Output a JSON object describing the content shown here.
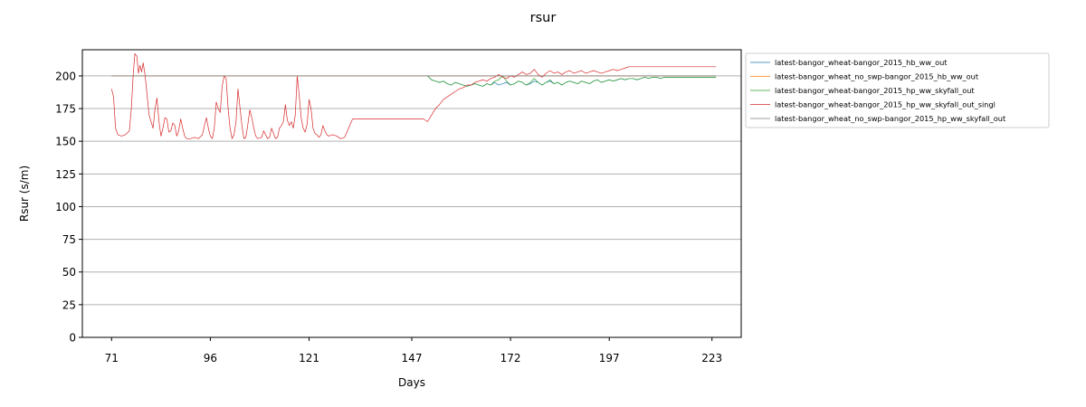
{
  "chart_data": {
    "type": "line",
    "title": "rsur",
    "xlabel": "Days",
    "ylabel": "Rsur (s/m)",
    "xlim": [
      63.6,
      230.4
    ],
    "ylim": [
      0,
      220
    ],
    "x_ticks": [
      71,
      96,
      121,
      147,
      172,
      197,
      223
    ],
    "y_ticks": [
      0,
      25,
      50,
      75,
      100,
      125,
      150,
      175,
      200
    ],
    "grid": "horizontal",
    "legend_position": "outside-right-top",
    "series": [
      {
        "name": "latest-bangor_wheat-bangor_2015_hb_ww_out",
        "color": "#1f77b4",
        "points": [
          [
            151,
            200
          ],
          [
            152,
            197
          ],
          [
            153,
            196
          ],
          [
            154,
            195
          ],
          [
            155,
            196
          ],
          [
            156,
            194
          ],
          [
            157,
            193
          ],
          [
            158,
            195
          ],
          [
            159,
            194
          ],
          [
            160,
            193
          ],
          [
            161,
            192
          ],
          [
            162,
            193
          ],
          [
            163,
            194
          ],
          [
            164,
            193
          ],
          [
            165,
            192
          ],
          [
            166,
            194
          ],
          [
            167,
            193
          ],
          [
            168,
            195
          ],
          [
            169,
            193
          ],
          [
            170,
            194
          ],
          [
            171,
            195
          ],
          [
            172,
            193
          ],
          [
            173,
            194
          ],
          [
            174,
            196
          ],
          [
            175,
            195
          ],
          [
            176,
            193
          ],
          [
            177,
            194
          ],
          [
            178,
            196
          ],
          [
            179,
            195
          ],
          [
            180,
            193
          ],
          [
            181,
            195
          ],
          [
            182,
            196
          ],
          [
            183,
            194
          ],
          [
            184,
            195
          ],
          [
            185,
            193
          ],
          [
            186,
            195
          ],
          [
            187,
            196
          ],
          [
            188,
            195
          ],
          [
            189,
            194
          ],
          [
            190,
            196
          ],
          [
            191,
            195
          ],
          [
            192,
            194
          ],
          [
            193,
            196
          ],
          [
            194,
            197
          ],
          [
            195,
            195
          ],
          [
            196,
            196
          ],
          [
            197,
            197
          ],
          [
            198,
            196
          ],
          [
            199,
            197
          ],
          [
            200,
            198
          ],
          [
            201,
            197
          ],
          [
            202,
            198
          ],
          [
            203,
            198
          ],
          [
            204,
            197
          ],
          [
            205,
            198
          ],
          [
            206,
            199
          ],
          [
            207,
            198
          ],
          [
            208,
            199
          ],
          [
            209,
            199
          ],
          [
            210,
            198
          ],
          [
            211,
            199
          ],
          [
            212,
            199
          ],
          [
            214,
            199
          ],
          [
            216,
            199
          ],
          [
            218,
            199
          ],
          [
            220,
            199
          ],
          [
            222,
            199
          ],
          [
            224,
            199
          ]
        ]
      },
      {
        "name": "latest-bangor_wheat_no_swp-bangor_2015_hb_ww_out",
        "color": "#ff7f0e",
        "points": [
          [
            71,
            200
          ],
          [
            151,
            200
          ],
          [
            180,
            200
          ],
          [
            224,
            200
          ]
        ]
      },
      {
        "name": "latest-bangor_wheat-bangor_2015_hp_ww_skyfall_out",
        "color": "#2ca02c",
        "points": [
          [
            151,
            200
          ],
          [
            152,
            197
          ],
          [
            153,
            196
          ],
          [
            154,
            195
          ],
          [
            155,
            196
          ],
          [
            156,
            194
          ],
          [
            157,
            193
          ],
          [
            158,
            195
          ],
          [
            159,
            194
          ],
          [
            160,
            193
          ],
          [
            161,
            192
          ],
          [
            162,
            193
          ],
          [
            163,
            194
          ],
          [
            164,
            193
          ],
          [
            165,
            192
          ],
          [
            166,
            194
          ],
          [
            167,
            193
          ],
          [
            168,
            196
          ],
          [
            169,
            197
          ],
          [
            170,
            200
          ],
          [
            171,
            196
          ],
          [
            172,
            193
          ],
          [
            173,
            194
          ],
          [
            174,
            196
          ],
          [
            175,
            195
          ],
          [
            176,
            193
          ],
          [
            177,
            195
          ],
          [
            178,
            198
          ],
          [
            179,
            195
          ],
          [
            180,
            193
          ],
          [
            181,
            195
          ],
          [
            182,
            197
          ],
          [
            183,
            194
          ],
          [
            184,
            195
          ],
          [
            185,
            193
          ],
          [
            186,
            195
          ],
          [
            187,
            196
          ],
          [
            188,
            195
          ],
          [
            189,
            194
          ],
          [
            190,
            196
          ],
          [
            191,
            195
          ],
          [
            192,
            194
          ],
          [
            193,
            196
          ],
          [
            194,
            197
          ],
          [
            195,
            195
          ],
          [
            196,
            196
          ],
          [
            197,
            197
          ],
          [
            198,
            196
          ],
          [
            199,
            197
          ],
          [
            200,
            198
          ],
          [
            201,
            197
          ],
          [
            202,
            198
          ],
          [
            203,
            198
          ],
          [
            204,
            197
          ],
          [
            205,
            198
          ],
          [
            206,
            199
          ],
          [
            207,
            198
          ],
          [
            208,
            199
          ],
          [
            209,
            199
          ],
          [
            210,
            198
          ],
          [
            211,
            199
          ],
          [
            212,
            199
          ],
          [
            214,
            199
          ],
          [
            216,
            199
          ],
          [
            218,
            199
          ],
          [
            220,
            199
          ],
          [
            222,
            199
          ],
          [
            224,
            199
          ]
        ]
      },
      {
        "name": "latest-bangor_wheat-bangor_2015_hp_ww_skyfall_out_singl",
        "color": "#d62728",
        "points": [
          [
            71,
            190
          ],
          [
            71.5,
            184
          ],
          [
            72,
            160
          ],
          [
            72.6,
            155
          ],
          [
            73.5,
            154
          ],
          [
            74.5,
            155
          ],
          [
            75.5,
            158
          ],
          [
            76,
            175
          ],
          [
            76.5,
            202
          ],
          [
            76.9,
            217
          ],
          [
            77.4,
            215
          ],
          [
            77.8,
            202
          ],
          [
            78.2,
            208
          ],
          [
            78.6,
            203
          ],
          [
            79,
            210
          ],
          [
            79.5,
            200
          ],
          [
            80,
            185
          ],
          [
            80.5,
            170
          ],
          [
            81,
            165
          ],
          [
            81.5,
            160
          ],
          [
            82,
            175
          ],
          [
            82.5,
            183
          ],
          [
            83,
            165
          ],
          [
            83.5,
            154
          ],
          [
            84,
            160
          ],
          [
            84.5,
            168
          ],
          [
            85,
            167
          ],
          [
            85.5,
            157
          ],
          [
            86,
            158
          ],
          [
            86.5,
            164
          ],
          [
            87,
            162
          ],
          [
            87.5,
            154
          ],
          [
            88,
            158
          ],
          [
            88.5,
            167
          ],
          [
            89,
            160
          ],
          [
            89.5,
            154
          ],
          [
            90,
            152
          ],
          [
            91,
            152
          ],
          [
            92,
            153
          ],
          [
            93,
            152
          ],
          [
            94,
            155
          ],
          [
            94.5,
            162
          ],
          [
            95,
            168
          ],
          [
            95.5,
            160
          ],
          [
            96,
            154
          ],
          [
            96.5,
            152
          ],
          [
            97,
            160
          ],
          [
            97.5,
            180
          ],
          [
            98,
            175
          ],
          [
            98.5,
            172
          ],
          [
            99,
            192
          ],
          [
            99.5,
            200
          ],
          [
            100,
            198
          ],
          [
            100.5,
            175
          ],
          [
            101,
            160
          ],
          [
            101.5,
            152
          ],
          [
            102,
            155
          ],
          [
            102.5,
            165
          ],
          [
            103,
            190
          ],
          [
            103.5,
            176
          ],
          [
            104,
            162
          ],
          [
            104.5,
            152
          ],
          [
            105,
            153
          ],
          [
            105.5,
            163
          ],
          [
            106,
            174
          ],
          [
            106.5,
            168
          ],
          [
            107,
            160
          ],
          [
            107.5,
            154
          ],
          [
            108,
            152
          ],
          [
            109,
            153
          ],
          [
            109.5,
            158
          ],
          [
            110,
            155
          ],
          [
            110.5,
            152
          ],
          [
            111,
            153
          ],
          [
            111.5,
            160
          ],
          [
            112,
            156
          ],
          [
            112.5,
            152
          ],
          [
            113,
            153
          ],
          [
            113.5,
            160
          ],
          [
            114,
            162
          ],
          [
            114.5,
            165
          ],
          [
            115,
            178
          ],
          [
            115.5,
            166
          ],
          [
            116,
            162
          ],
          [
            116.5,
            165
          ],
          [
            117,
            160
          ],
          [
            117.5,
            170
          ],
          [
            118,
            200
          ],
          [
            118.5,
            185
          ],
          [
            119,
            168
          ],
          [
            119.5,
            160
          ],
          [
            120,
            157
          ],
          [
            120.5,
            163
          ],
          [
            121,
            182
          ],
          [
            121.5,
            175
          ],
          [
            122,
            160
          ],
          [
            122.5,
            156
          ],
          [
            123,
            155
          ],
          [
            123.5,
            153
          ],
          [
            124,
            155
          ],
          [
            124.5,
            162
          ],
          [
            125,
            158
          ],
          [
            125.5,
            155
          ],
          [
            126,
            154
          ],
          [
            127,
            155
          ],
          [
            128,
            154
          ],
          [
            129,
            152
          ],
          [
            130,
            153
          ],
          [
            131,
            160
          ],
          [
            132,
            167
          ],
          [
            140,
            167
          ],
          [
            150,
            167
          ],
          [
            151,
            165
          ],
          [
            152,
            170
          ],
          [
            153,
            175
          ],
          [
            154,
            178
          ],
          [
            155,
            182
          ],
          [
            156,
            184
          ],
          [
            157,
            186
          ],
          [
            158,
            188
          ],
          [
            159,
            190
          ],
          [
            160,
            191
          ],
          [
            161,
            193
          ],
          [
            162,
            193
          ],
          [
            163,
            195
          ],
          [
            164,
            196
          ],
          [
            165,
            197
          ],
          [
            166,
            196
          ],
          [
            167,
            198
          ],
          [
            168,
            199
          ],
          [
            169,
            201
          ],
          [
            170,
            199
          ],
          [
            171,
            198
          ],
          [
            172,
            200
          ],
          [
            173,
            199
          ],
          [
            174,
            201
          ],
          [
            175,
            203
          ],
          [
            176,
            201
          ],
          [
            177,
            202
          ],
          [
            178,
            205
          ],
          [
            179,
            201
          ],
          [
            180,
            199
          ],
          [
            181,
            202
          ],
          [
            182,
            204
          ],
          [
            183,
            202
          ],
          [
            184,
            203
          ],
          [
            185,
            201
          ],
          [
            186,
            203
          ],
          [
            187,
            204
          ],
          [
            188,
            202
          ],
          [
            189,
            203
          ],
          [
            190,
            204
          ],
          [
            191,
            202
          ],
          [
            192,
            203
          ],
          [
            193,
            204
          ],
          [
            194,
            203
          ],
          [
            195,
            202
          ],
          [
            196,
            203
          ],
          [
            197,
            204
          ],
          [
            198,
            205
          ],
          [
            199,
            204
          ],
          [
            200,
            205
          ],
          [
            201,
            206
          ],
          [
            202,
            207
          ],
          [
            203,
            207
          ],
          [
            204,
            207
          ],
          [
            206,
            207
          ],
          [
            208,
            207
          ],
          [
            210,
            207
          ],
          [
            212,
            207
          ],
          [
            214,
            207
          ],
          [
            216,
            207
          ],
          [
            218,
            207
          ],
          [
            220,
            207
          ],
          [
            224,
            207
          ]
        ]
      },
      {
        "name": "latest-bangor_wheat_no_swp-bangor_2015_hp_ww_skyfall_out",
        "color": "#7f7f7f",
        "points": [
          [
            71,
            200
          ],
          [
            151,
            200
          ],
          [
            224,
            200
          ]
        ]
      }
    ]
  }
}
